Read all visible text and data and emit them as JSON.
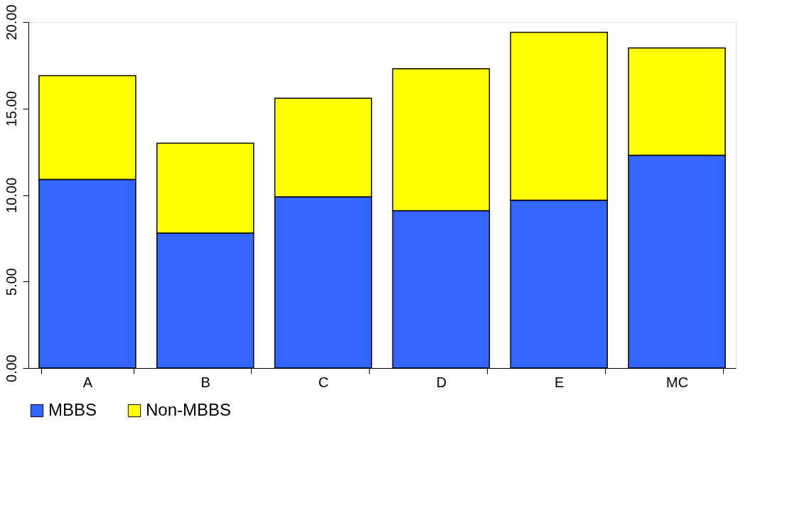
{
  "chart_data": {
    "type": "bar",
    "stacked": true,
    "categories": [
      "A",
      "B",
      "C",
      "D",
      "E",
      "MC"
    ],
    "series": [
      {
        "name": "MBBS",
        "color": "#3366ff",
        "values": [
          10.9,
          7.8,
          9.9,
          9.1,
          9.7,
          12.3
        ]
      },
      {
        "name": "Non-MBBS",
        "color": "#ffff00",
        "values": [
          6.0,
          5.2,
          5.7,
          8.2,
          9.7,
          6.2
        ]
      }
    ],
    "ylim": [
      0,
      20
    ],
    "yticks": [
      {
        "value": 0,
        "label": "0.00"
      },
      {
        "value": 5,
        "label": "5.00"
      },
      {
        "value": 10,
        "label": "10.00"
      },
      {
        "value": 15,
        "label": "15.00"
      },
      {
        "value": 20,
        "label": "20.00"
      }
    ],
    "grid": false,
    "legend": "bottom"
  }
}
